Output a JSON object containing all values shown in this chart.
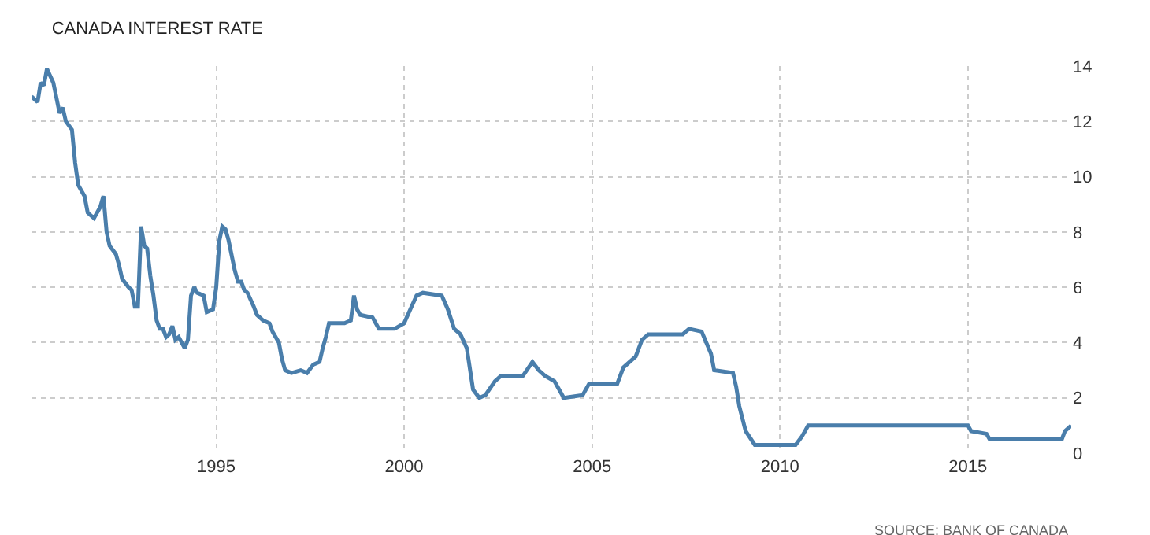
{
  "chart_data": {
    "type": "line",
    "title": "CANADA INTEREST RATE",
    "annotations": [
      "SOURCE: BANK OF CANADA"
    ],
    "x": [
      "1990-02",
      "1990-04",
      "1990-05",
      "1990-06",
      "1990-07",
      "1990-09",
      "1990-11",
      "1990-12",
      "1991-01",
      "1991-03",
      "1991-04",
      "1991-05",
      "1991-07",
      "1991-08",
      "1991-10",
      "1991-12",
      "1992-01",
      "1992-02",
      "1992-03",
      "1992-05",
      "1992-06",
      "1992-07",
      "1992-09",
      "1992-10",
      "1992-11",
      "1992-12",
      "1993-01",
      "1993-02",
      "1993-03",
      "1993-04",
      "1993-05",
      "1993-06",
      "1993-07",
      "1993-08",
      "1993-09",
      "1993-10",
      "1993-11",
      "1993-12",
      "1994-01",
      "1994-03",
      "1994-04",
      "1994-05",
      "1994-06",
      "1994-07",
      "1994-09",
      "1994-10",
      "1994-12",
      "1995-01",
      "1995-02",
      "1995-03",
      "1995-04",
      "1995-05",
      "1995-07",
      "1995-08",
      "1995-09",
      "1995-10",
      "1995-11",
      "1996-01",
      "1996-02",
      "1996-04",
      "1996-06",
      "1996-07",
      "1996-09",
      "1996-10",
      "1996-11",
      "1997-01",
      "1997-04",
      "1997-06",
      "1997-08",
      "1997-10",
      "1997-11",
      "1997-12",
      "1998-01",
      "1998-06",
      "1998-08",
      "1998-09",
      "1998-10",
      "1998-11",
      "1999-03",
      "1999-05",
      "1999-10",
      "2000-01",
      "2000-03",
      "2000-05",
      "2000-07",
      "2001-01",
      "2001-03",
      "2001-05",
      "2001-07",
      "2001-09",
      "2001-11",
      "2002-01",
      "2002-03",
      "2002-06",
      "2002-08",
      "2003-03",
      "2003-06",
      "2003-08",
      "2003-10",
      "2004-01",
      "2004-04",
      "2004-10",
      "2004-12",
      "2005-09",
      "2005-11",
      "2006-03",
      "2006-05",
      "2006-07",
      "2007-06",
      "2007-08",
      "2007-12",
      "2008-03",
      "2008-04",
      "2008-10",
      "2008-11",
      "2008-12",
      "2009-02",
      "2009-05",
      "2010-06",
      "2010-08",
      "2010-09",
      "2010-10",
      "2015-01",
      "2015-02",
      "2015-07",
      "2015-08",
      "2017-07",
      "2017-08",
      "2017-09",
      "2017-10"
    ],
    "series": [
      {
        "color": "#4a7eab",
        "values": [
          12.9,
          12.7,
          13.4,
          13.3,
          13.9,
          13.4,
          12.3,
          12.5,
          12.0,
          11.7,
          10.5,
          9.7,
          9.3,
          8.7,
          8.5,
          8.9,
          9.3,
          8.0,
          7.5,
          7.2,
          6.8,
          6.3,
          6.0,
          5.9,
          5.3,
          5.3,
          8.2,
          7.5,
          7.4,
          6.4,
          5.7,
          4.8,
          4.5,
          4.5,
          4.2,
          4.3,
          4.6,
          4.1,
          4.2,
          3.8,
          4.1,
          5.7,
          6.0,
          5.8,
          5.7,
          5.1,
          5.2,
          6.0,
          7.7,
          8.2,
          8.1,
          7.7,
          6.6,
          6.2,
          6.2,
          5.9,
          5.8,
          5.3,
          5.0,
          4.8,
          4.7,
          4.4,
          4.0,
          3.4,
          3.0,
          2.9,
          3.0,
          2.9,
          3.2,
          3.3,
          3.8,
          4.2,
          4.7,
          4.7,
          4.8,
          5.7,
          5.2,
          5.0,
          4.9,
          4.5,
          4.5,
          4.7,
          5.2,
          5.7,
          5.8,
          5.7,
          5.2,
          4.5,
          4.3,
          3.8,
          2.3,
          2.0,
          2.1,
          2.6,
          2.8,
          2.8,
          3.3,
          3.0,
          2.8,
          2.6,
          2.0,
          2.1,
          2.5,
          2.5,
          3.1,
          3.5,
          4.1,
          4.3,
          4.3,
          4.5,
          4.4,
          3.6,
          3.0,
          2.9,
          2.4,
          1.7,
          0.8,
          0.3,
          0.3,
          0.6,
          0.8,
          1.0,
          1.0,
          0.8,
          0.7,
          0.5,
          0.5,
          0.8,
          0.9,
          1.0
        ]
      }
    ],
    "xlim": [
      "1990-02",
      "2017-10"
    ],
    "xticks": [
      {
        "value": "1995-01-01",
        "label": "1995"
      },
      {
        "value": "2000-01-01",
        "label": "2000"
      },
      {
        "value": "2005-01-01",
        "label": "2005"
      },
      {
        "value": "2010-01-01",
        "label": "2010"
      },
      {
        "value": "2015-01-01",
        "label": "2015"
      }
    ],
    "ylim": [
      0,
      14
    ],
    "yticks": [
      0,
      2,
      4,
      6,
      8,
      10,
      12,
      14
    ],
    "grid": true,
    "marker": "none",
    "line_style": "solid"
  }
}
